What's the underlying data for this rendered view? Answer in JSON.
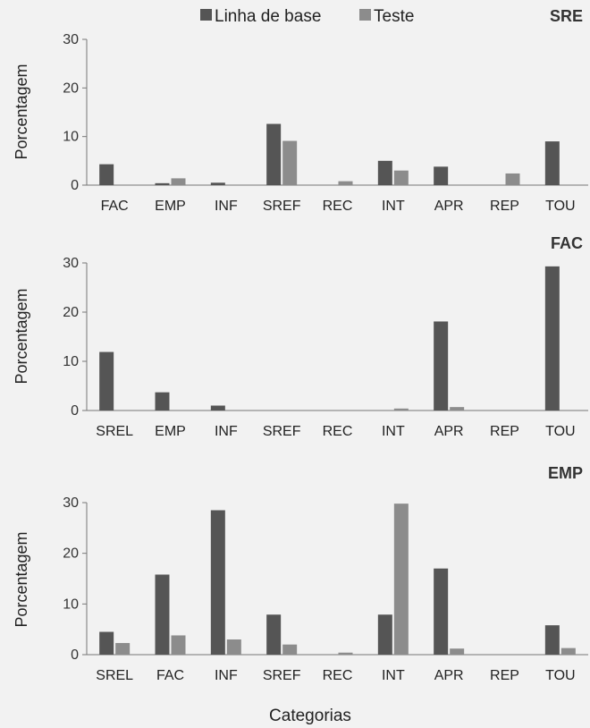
{
  "legend": {
    "baseline_label": "Linha de base",
    "test_label": "Teste",
    "baseline_color": "#555555",
    "test_color": "#8c8c8c"
  },
  "xlabel": "Categorias",
  "chart_data": [
    {
      "type": "bar",
      "title": "SRE",
      "ylabel": "Porcentagem",
      "ylim": [
        0,
        30
      ],
      "yticks": [
        0,
        10,
        20,
        30
      ],
      "categories": [
        "FAC",
        "EMP",
        "INF",
        "SREF",
        "REC",
        "INT",
        "APR",
        "REP",
        "TOU"
      ],
      "series": [
        {
          "name": "Linha de base",
          "values": [
            4.3,
            0.4,
            0.5,
            12.6,
            0,
            5.0,
            3.8,
            0,
            9.0
          ]
        },
        {
          "name": "Teste",
          "values": [
            0,
            1.4,
            0,
            9.1,
            0.8,
            3.0,
            0,
            2.4,
            0
          ]
        }
      ]
    },
    {
      "type": "bar",
      "title": "FAC",
      "ylabel": "Porcentagem",
      "ylim": [
        0,
        30
      ],
      "yticks": [
        0,
        10,
        20,
        30
      ],
      "categories": [
        "SREL",
        "EMP",
        "INF",
        "SREF",
        "REC",
        "INT",
        "APR",
        "REP",
        "TOU"
      ],
      "series": [
        {
          "name": "Linha de base",
          "values": [
            11.9,
            3.7,
            1.0,
            0,
            0,
            0,
            18.1,
            0,
            29.3
          ]
        },
        {
          "name": "Teste",
          "values": [
            0,
            0,
            0,
            0,
            0,
            0.4,
            0.7,
            0,
            0
          ]
        }
      ]
    },
    {
      "type": "bar",
      "title": "EMP",
      "ylabel": "Porcentagem",
      "ylim": [
        0,
        30
      ],
      "yticks": [
        0,
        10,
        20,
        30
      ],
      "categories": [
        "SREL",
        "FAC",
        "INF",
        "SREF",
        "REC",
        "INT",
        "APR",
        "REP",
        "TOU"
      ],
      "series": [
        {
          "name": "Linha de base",
          "values": [
            4.5,
            15.8,
            28.5,
            7.9,
            0,
            7.9,
            17.0,
            0,
            5.8
          ]
        },
        {
          "name": "Teste",
          "values": [
            2.3,
            3.8,
            3.0,
            2.0,
            0.4,
            29.8,
            1.2,
            0,
            1.3
          ]
        }
      ]
    }
  ]
}
